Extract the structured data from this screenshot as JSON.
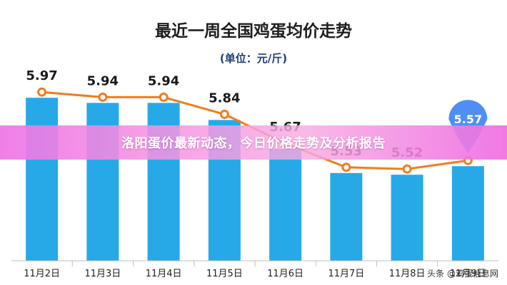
{
  "overlay_title": "洛阳蛋价最新动态，今日价格走势及分析报告",
  "watermark": "头条 @鸡蛋信息网",
  "colors": {
    "bar": "#27a9e8",
    "line": "#f07d1e",
    "highlight": "#4f8ff5"
  },
  "chart_data": {
    "type": "bar",
    "title": "最近一周全国鸡蛋均价走势",
    "subtitle": "(单位：元/斤)",
    "categories": [
      "11月2日",
      "11月3日",
      "11月4日",
      "11月5日",
      "11月6日",
      "11月7日",
      "11月8日",
      "11月9日"
    ],
    "values": [
      5.97,
      5.94,
      5.94,
      5.84,
      5.67,
      5.53,
      5.52,
      5.57
    ],
    "value_labels": [
      "5.97",
      "5.94",
      "5.94",
      "5.84",
      "5.67",
      "5.53",
      "5.52",
      "5.57"
    ],
    "ylim": [
      5.0,
      6.05
    ],
    "line_overlay": true,
    "highlight_last": true,
    "grid": false
  }
}
